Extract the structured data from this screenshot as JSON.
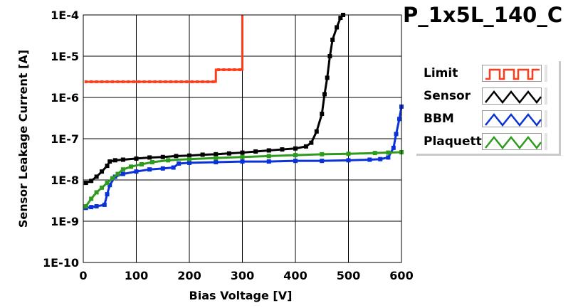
{
  "chart_data": {
    "type": "line",
    "title": "P_1x5L_140_C",
    "xlabel": "Bias Voltage [V]",
    "ylabel": "Sensor Leakage Current [A]",
    "xlim": [
      0,
      600
    ],
    "ylim": [
      1e-10,
      0.0001
    ],
    "yscale": "log",
    "grid": true,
    "legend_position": "right",
    "x_ticks": [
      0,
      100,
      200,
      300,
      400,
      500,
      600
    ],
    "x_tick_labels": [
      "0",
      "100",
      "200",
      "300",
      "400",
      "500",
      "600"
    ],
    "y_ticks": [
      1e-10,
      1e-09,
      1e-08,
      1e-07,
      1e-06,
      1e-05,
      0.0001
    ],
    "y_tick_labels": [
      "1E-10",
      "1E-9",
      "1E-8",
      "1E-7",
      "1E-6",
      "1E-5",
      "1E-4"
    ],
    "series": [
      {
        "name": "Limit",
        "color": "#ff3b1a",
        "step": true,
        "points": [
          [
            5,
            2.4e-06
          ],
          [
            250,
            2.4e-06
          ],
          [
            250,
            4.7e-06
          ],
          [
            300,
            4.7e-06
          ],
          [
            300,
            0.0001
          ]
        ]
      },
      {
        "name": "Sensor",
        "color": "#000000",
        "points": [
          [
            5,
            8.5e-09
          ],
          [
            15,
            9.5e-09
          ],
          [
            25,
            1.2e-08
          ],
          [
            35,
            1.6e-08
          ],
          [
            45,
            2.2e-08
          ],
          [
            50,
            2.8e-08
          ],
          [
            60,
            3e-08
          ],
          [
            75,
            3.1e-08
          ],
          [
            100,
            3.3e-08
          ],
          [
            125,
            3.5e-08
          ],
          [
            150,
            3.6e-08
          ],
          [
            175,
            3.8e-08
          ],
          [
            200,
            3.9e-08
          ],
          [
            225,
            4.1e-08
          ],
          [
            250,
            4.2e-08
          ],
          [
            275,
            4.4e-08
          ],
          [
            300,
            4.6e-08
          ],
          [
            325,
            4.9e-08
          ],
          [
            350,
            5.2e-08
          ],
          [
            375,
            5.5e-08
          ],
          [
            400,
            5.8e-08
          ],
          [
            420,
            6.5e-08
          ],
          [
            430,
            8e-08
          ],
          [
            440,
            1.5e-07
          ],
          [
            450,
            4e-07
          ],
          [
            455,
            1.2e-06
          ],
          [
            460,
            3e-06
          ],
          [
            465,
            1e-05
          ],
          [
            470,
            2.5e-05
          ],
          [
            478,
            5e-05
          ],
          [
            485,
            8.5e-05
          ],
          [
            490,
            0.0001
          ]
        ]
      },
      {
        "name": "BBM",
        "color": "#0a32d8",
        "points": [
          [
            5,
            2.1e-09
          ],
          [
            15,
            2.2e-09
          ],
          [
            25,
            2.3e-09
          ],
          [
            40,
            2.5e-09
          ],
          [
            45,
            4.5e-09
          ],
          [
            50,
            7.5e-09
          ],
          [
            60,
            1.2e-08
          ],
          [
            75,
            1.4e-08
          ],
          [
            100,
            1.6e-08
          ],
          [
            125,
            1.8e-08
          ],
          [
            150,
            1.9e-08
          ],
          [
            170,
            2e-08
          ],
          [
            180,
            2.5e-08
          ],
          [
            200,
            2.6e-08
          ],
          [
            250,
            2.7e-08
          ],
          [
            300,
            2.8e-08
          ],
          [
            350,
            2.8e-08
          ],
          [
            400,
            2.9e-08
          ],
          [
            450,
            2.9e-08
          ],
          [
            500,
            3e-08
          ],
          [
            540,
            3.1e-08
          ],
          [
            560,
            3.2e-08
          ],
          [
            575,
            3.5e-08
          ],
          [
            585,
            6e-08
          ],
          [
            590,
            1.3e-07
          ],
          [
            596,
            3e-07
          ],
          [
            600,
            6e-07
          ]
        ]
      },
      {
        "name": "Plaquette",
        "color": "#2e9b1e",
        "points": [
          [
            5,
            2.3e-09
          ],
          [
            15,
            3.5e-09
          ],
          [
            25,
            5e-09
          ],
          [
            35,
            6.5e-09
          ],
          [
            45,
            8.5e-09
          ],
          [
            55,
            1.1e-08
          ],
          [
            65,
            1.4e-08
          ],
          [
            75,
            1.8e-08
          ],
          [
            90,
            2.1e-08
          ],
          [
            110,
            2.4e-08
          ],
          [
            130,
            2.7e-08
          ],
          [
            160,
            3e-08
          ],
          [
            200,
            3.2e-08
          ],
          [
            250,
            3.4e-08
          ],
          [
            300,
            3.6e-08
          ],
          [
            350,
            3.8e-08
          ],
          [
            400,
            4e-08
          ],
          [
            450,
            4.2e-08
          ],
          [
            500,
            4.3e-08
          ],
          [
            550,
            4.5e-08
          ],
          [
            575,
            4.6e-08
          ],
          [
            600,
            4.7e-08
          ]
        ]
      }
    ]
  }
}
